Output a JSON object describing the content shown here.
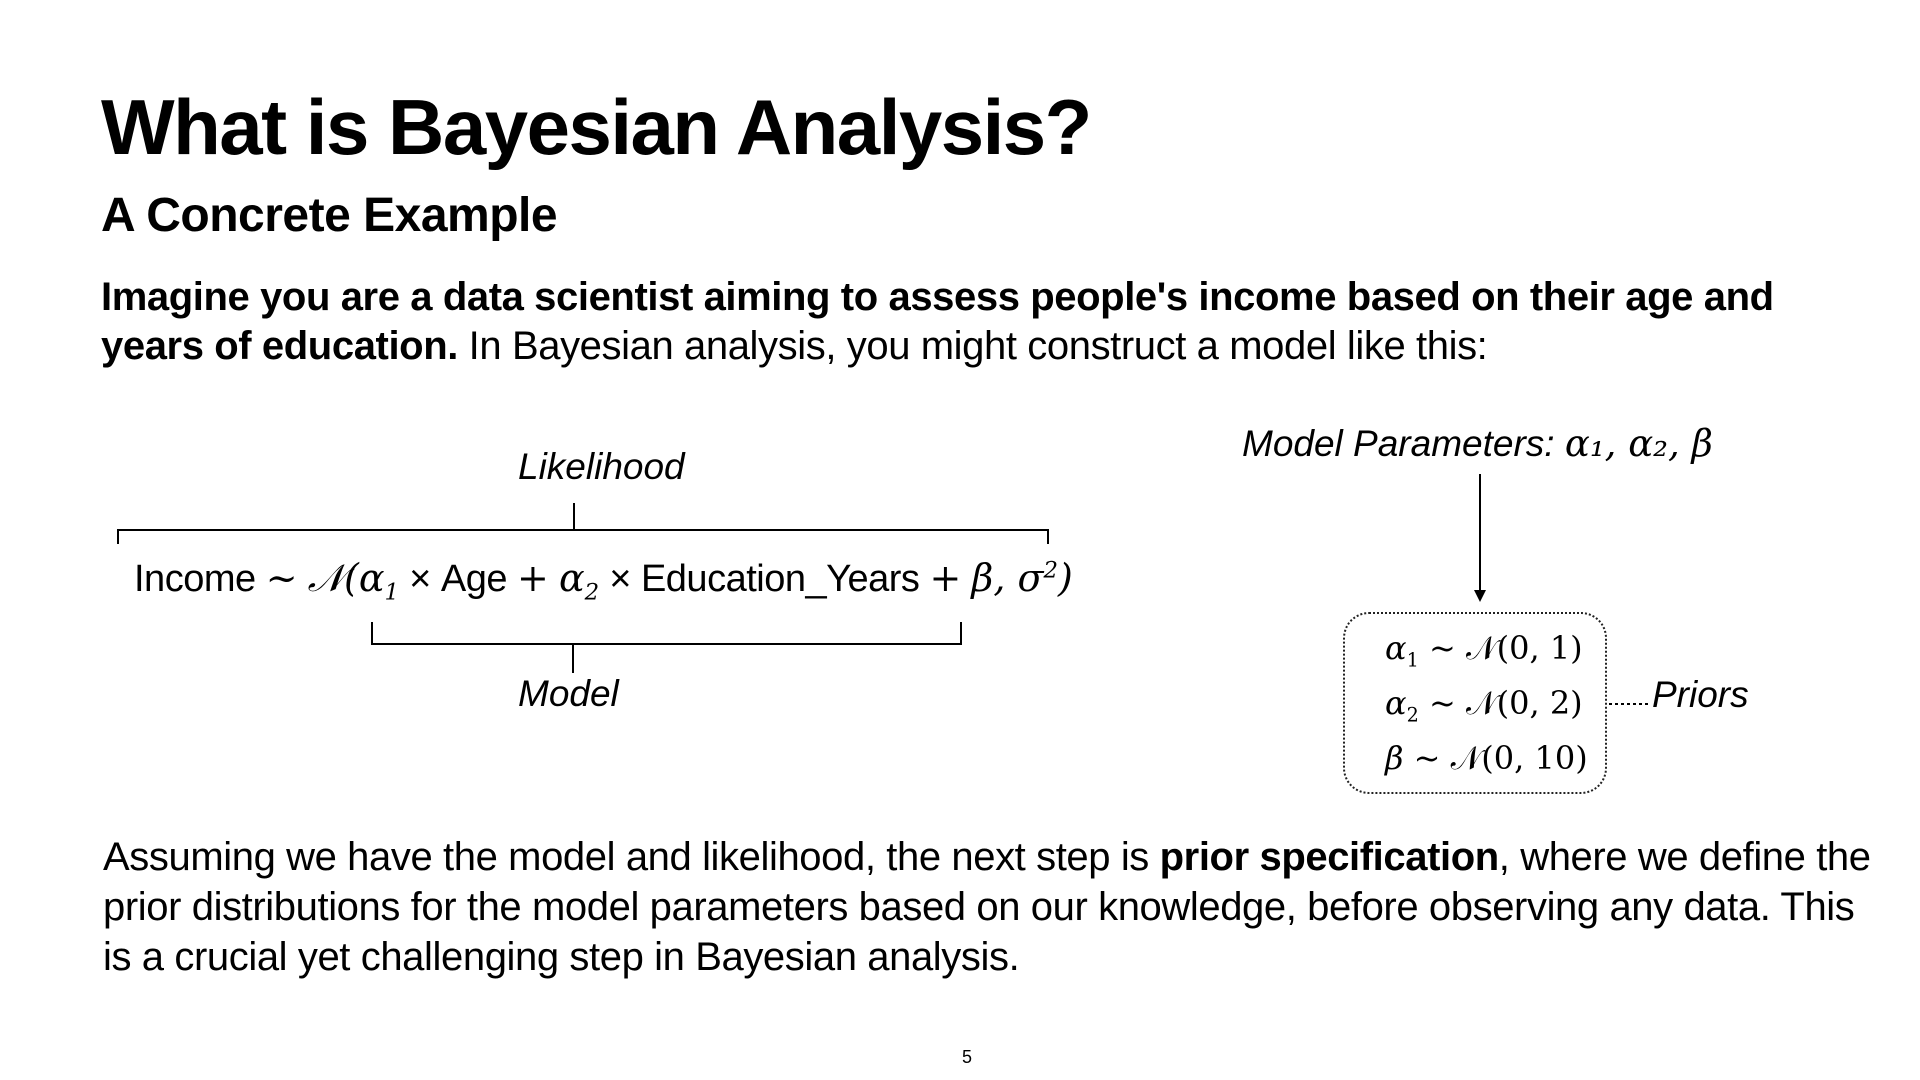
{
  "slide": {
    "title": "What is Bayesian Analysis?",
    "subtitle": "A Concrete Example",
    "intro_bold": "Imagine you are a data scientist aiming to assess people's income based on their age and years of education.",
    "intro_rest": " In Bayesian analysis, you might construct a model like this:",
    "page_number": "5"
  },
  "diagram": {
    "likelihood_label": "Likelihood",
    "model_label": "Model",
    "params_label": "Model Parameters:",
    "params_math": "α₁, α₂, β",
    "priors_label": "Priors",
    "equation": {
      "lhs": "Income",
      "tilde": "~",
      "dist": "𝒩",
      "alpha": "α",
      "one": "1",
      "two": "2",
      "times": "×",
      "age": "Age",
      "plus": "+",
      "edu": "Education_Years",
      "beta": "β",
      "sigma": "σ",
      "sq": "2"
    },
    "priors": [
      {
        "symbol": "α",
        "sub": "1",
        "expr": "~ 𝒩(0, 1)"
      },
      {
        "symbol": "α",
        "sub": "2",
        "expr": "~ 𝒩(0, 2)"
      },
      {
        "symbol": "β",
        "sub": "",
        "expr": "~ 𝒩(0, 10)"
      }
    ]
  },
  "conclusion": {
    "part1": "Assuming we have the model and likelihood, the next step is ",
    "bold": "prior specification",
    "part2": ", where we define the prior distributions for the model parameters based on our knowledge, before observing any data. This is a crucial yet challenging step in Bayesian analysis."
  }
}
